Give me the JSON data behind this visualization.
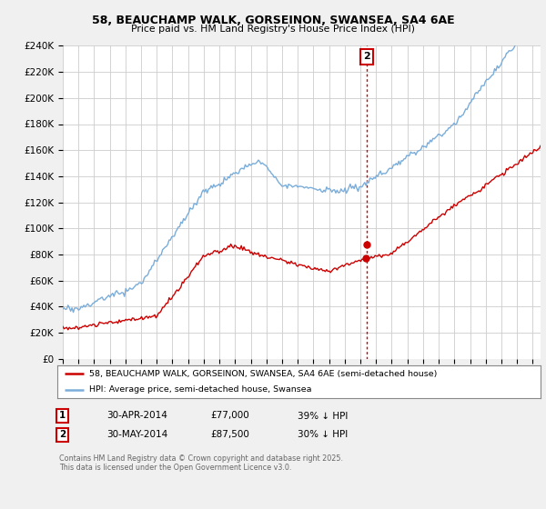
{
  "title_line1": "58, BEAUCHAMP WALK, GORSEINON, SWANSEA, SA4 6AE",
  "title_line2": "Price paid vs. HM Land Registry's House Price Index (HPI)",
  "legend_label_red": "58, BEAUCHAMP WALK, GORSEINON, SWANSEA, SA4 6AE (semi-detached house)",
  "legend_label_blue": "HPI: Average price, semi-detached house, Swansea",
  "footer": "Contains HM Land Registry data © Crown copyright and database right 2025.\nThis data is licensed under the Open Government Licence v3.0.",
  "annotation1_num": "1",
  "annotation1_date": "30-APR-2014",
  "annotation1_price": "£77,000",
  "annotation1_hpi": "39% ↓ HPI",
  "annotation2_num": "2",
  "annotation2_date": "30-MAY-2014",
  "annotation2_price": "£87,500",
  "annotation2_hpi": "30% ↓ HPI",
  "sale1_year": 2014.33,
  "sale1_value": 77000,
  "sale2_year": 2014.42,
  "sale2_value": 87500,
  "ylim_max": 240000,
  "ylim_min": 0,
  "bg_color": "#f0f0f0",
  "plot_bg_color": "#ffffff",
  "red_color": "#cc0000",
  "blue_color": "#7aadda",
  "grid_color": "#cccccc",
  "vline_color": "#cc0000"
}
